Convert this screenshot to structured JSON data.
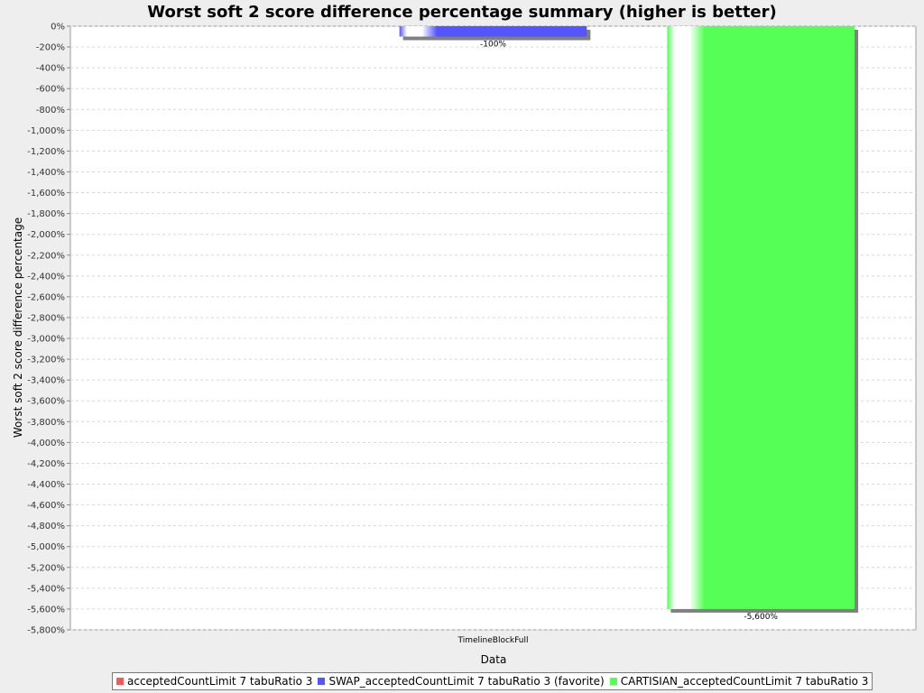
{
  "chart_data": {
    "type": "bar",
    "title": "Worst soft 2 score difference percentage summary (higher is better)",
    "xlabel": "Data",
    "ylabel": "Worst soft 2 score difference percentage",
    "categories": [
      "TimelineBlockFull"
    ],
    "ylim": [
      -5800,
      0
    ],
    "y_ticks": [
      0,
      -200,
      -400,
      -600,
      -800,
      -1000,
      -1200,
      -1400,
      -1600,
      -1800,
      -2000,
      -2200,
      -2400,
      -2600,
      -2800,
      -3000,
      -3200,
      -3400,
      -3600,
      -3800,
      -4000,
      -4200,
      -4400,
      -4600,
      -4800,
      -5000,
      -5200,
      -5400,
      -5600,
      -5800
    ],
    "y_tick_labels": [
      "0%",
      "-200%",
      "-400%",
      "-600%",
      "-800%",
      "-1,000%",
      "-1,200%",
      "-1,400%",
      "-1,600%",
      "-1,800%",
      "-2,000%",
      "-2,200%",
      "-2,400%",
      "-2,600%",
      "-2,800%",
      "-3,000%",
      "-3,200%",
      "-3,400%",
      "-3,600%",
      "-3,800%",
      "-4,000%",
      "-4,200%",
      "-4,400%",
      "-4,600%",
      "-4,800%",
      "-5,000%",
      "-5,200%",
      "-5,400%",
      "-5,600%",
      "-5,800%"
    ],
    "grid": true,
    "legend_position": "bottom",
    "series": [
      {
        "name": "acceptedCountLimit 7 tabuRatio 3",
        "values": [
          0
        ],
        "value_labels": [
          ""
        ],
        "color": "#ff5555"
      },
      {
        "name": "SWAP_acceptedCountLimit 7 tabuRatio 3 (favorite)",
        "values": [
          -100
        ],
        "value_labels": [
          "-100%"
        ],
        "color": "#5555ff"
      },
      {
        "name": "CARTISIAN_acceptedCountLimit 7 tabuRatio 3",
        "values": [
          -5600
        ],
        "value_labels": [
          "-5,600%"
        ],
        "color": "#55ff55"
      }
    ]
  }
}
